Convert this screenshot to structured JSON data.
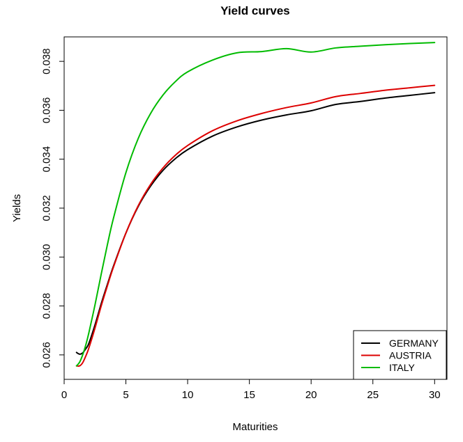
{
  "chart_data": {
    "type": "line",
    "title": "Yield curves",
    "xlabel": "Maturities",
    "ylabel": "Yields",
    "xlim": [
      0,
      31
    ],
    "ylim": [
      0.025,
      0.039
    ],
    "xticks": [
      0,
      5,
      10,
      15,
      20,
      25,
      30
    ],
    "xtick_labels": [
      "0",
      "5",
      "10",
      "15",
      "20",
      "25",
      "30"
    ],
    "yticks": [
      0.026,
      0.028,
      0.03,
      0.032,
      0.034,
      0.036,
      0.038
    ],
    "ytick_labels": [
      "0.026",
      "0.028",
      "0.030",
      "0.032",
      "0.034",
      "0.036",
      "0.038"
    ],
    "grid": false,
    "legend_position": "bottom-right",
    "x": [
      1,
      1.25,
      1.5,
      1.75,
      2,
      2.5,
      3,
      3.5,
      4,
      5,
      6,
      7,
      8,
      9,
      10,
      12,
      14,
      16,
      18,
      20,
      22,
      24,
      26,
      28,
      30
    ],
    "series": [
      {
        "name": "GERMANY",
        "color": "#000000",
        "values": [
          0.0261,
          0.02603,
          0.02608,
          0.02625,
          0.02647,
          0.02723,
          0.02809,
          0.02888,
          0.02964,
          0.03098,
          0.03207,
          0.0329,
          0.03354,
          0.03402,
          0.03439,
          0.03494,
          0.03532,
          0.0356,
          0.03581,
          0.03598,
          0.03624,
          0.03636,
          0.0365,
          0.03661,
          0.03672
        ]
      },
      {
        "name": "AUSTRIA",
        "color": "#dd0000",
        "values": [
          0.02555,
          0.02555,
          0.02568,
          0.02595,
          0.02628,
          0.0271,
          0.028,
          0.02882,
          0.0296,
          0.03098,
          0.0321,
          0.03297,
          0.03364,
          0.03416,
          0.03456,
          0.03516,
          0.03557,
          0.03587,
          0.03611,
          0.0363,
          0.03656,
          0.03669,
          0.03682,
          0.03692,
          0.03702
        ]
      },
      {
        "name": "ITALY",
        "color": "#00bb00",
        "values": [
          0.02555,
          0.0257,
          0.026,
          0.0264,
          0.0269,
          0.02805,
          0.0293,
          0.0305,
          0.0316,
          0.03345,
          0.03485,
          0.03587,
          0.03662,
          0.03717,
          0.03757,
          0.03805,
          0.03835,
          0.0384,
          0.03852,
          0.03838,
          0.03855,
          0.03862,
          0.03868,
          0.03873,
          0.03877
        ]
      }
    ]
  }
}
